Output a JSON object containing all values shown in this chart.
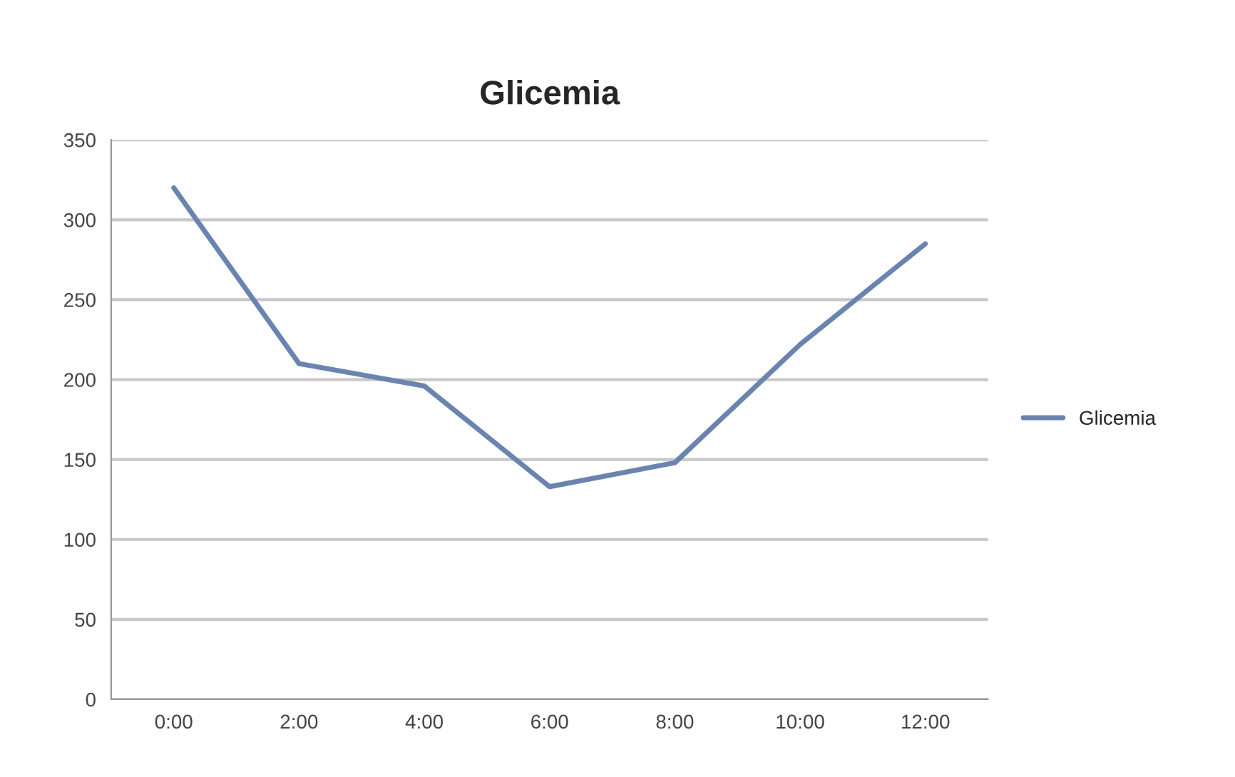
{
  "chart_data": {
    "type": "line",
    "title": "Glicemia",
    "categories": [
      "0:00",
      "2:00",
      "4:00",
      "6:00",
      "8:00",
      "10:00",
      "12:00"
    ],
    "series": [
      {
        "name": "Glicemia",
        "color": "#6a84b0",
        "values": [
          320,
          210,
          196,
          133,
          148,
          222,
          285
        ]
      }
    ],
    "ylim": [
      0,
      350
    ],
    "yticks": [
      0,
      50,
      100,
      150,
      200,
      250,
      300,
      350
    ],
    "grid": "y",
    "legend": "right",
    "marker": "none",
    "line_style": "solid"
  }
}
